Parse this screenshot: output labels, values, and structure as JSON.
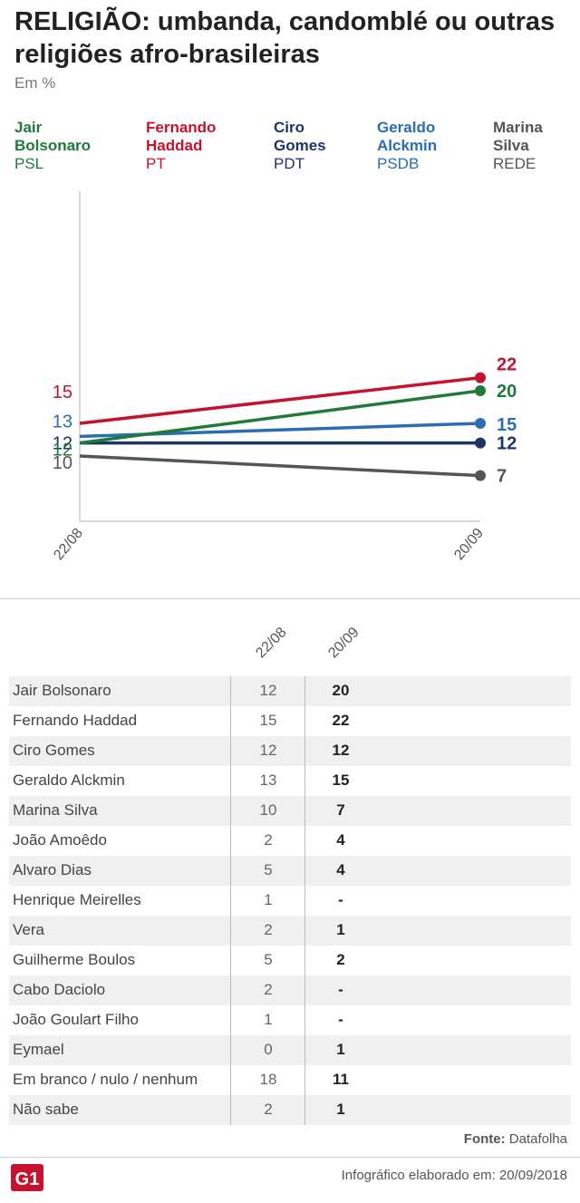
{
  "title": "RELIGIÃO: umbanda, candomblé ou outras religiões afro-brasileiras",
  "subtitle": "Em %",
  "legend": [
    {
      "name": "Jair Bolsonaro",
      "party": "PSL",
      "color": "#1f7a3a"
    },
    {
      "name": "Fernando Haddad",
      "party": "PT",
      "color": "#c4122f"
    },
    {
      "name": "Ciro Gomes",
      "party": "PDT",
      "color": "#1c3466"
    },
    {
      "name": "Geraldo Alckmin",
      "party": "PSDB",
      "color": "#2a6db5"
    },
    {
      "name": "Marina Silva",
      "party": "REDE",
      "color": "#555555"
    }
  ],
  "chart_data": {
    "type": "line",
    "x": [
      "22/08",
      "20/09"
    ],
    "series": [
      {
        "name": "Fernando Haddad",
        "values": [
          15,
          22
        ],
        "color": "#c4122f"
      },
      {
        "name": "Jair Bolsonaro",
        "values": [
          12,
          20
        ],
        "color": "#1f7a3a"
      },
      {
        "name": "Geraldo Alckmin",
        "values": [
          13,
          15
        ],
        "color": "#2a6db5"
      },
      {
        "name": "Ciro Gomes",
        "values": [
          12,
          12
        ],
        "color": "#1c3466"
      },
      {
        "name": "Marina Silva",
        "values": [
          10,
          7
        ],
        "color": "#555555"
      }
    ]
  },
  "table": {
    "headers": [
      "22/08",
      "20/09"
    ],
    "rows": [
      {
        "name": "Jair Bolsonaro",
        "v1": "12",
        "v2": "20"
      },
      {
        "name": "Fernando Haddad",
        "v1": "15",
        "v2": "22"
      },
      {
        "name": "Ciro Gomes",
        "v1": "12",
        "v2": "12"
      },
      {
        "name": "Geraldo Alckmin",
        "v1": "13",
        "v2": "15"
      },
      {
        "name": "Marina Silva",
        "v1": "10",
        "v2": "7"
      },
      {
        "name": "João Amoêdo",
        "v1": "2",
        "v2": "4"
      },
      {
        "name": "Alvaro Dias",
        "v1": "5",
        "v2": "4"
      },
      {
        "name": "Henrique Meirelles",
        "v1": "1",
        "v2": "-"
      },
      {
        "name": "Vera",
        "v1": "2",
        "v2": "1"
      },
      {
        "name": "Guilherme Boulos",
        "v1": "5",
        "v2": "2"
      },
      {
        "name": "Cabo Daciolo",
        "v1": "2",
        "v2": "-"
      },
      {
        "name": "João Goulart Filho",
        "v1": "1",
        "v2": "-"
      },
      {
        "name": "Eymael",
        "v1": "0",
        "v2": "1"
      },
      {
        "name": "Em branco / nulo / nenhum",
        "v1": "18",
        "v2": "11"
      },
      {
        "name": "Não sabe",
        "v1": "2",
        "v2": "1"
      }
    ]
  },
  "source_label": "Fonte:",
  "source_value": "Datafolha",
  "footer": "Infográfico elaborado em: 20/09/2018",
  "logo_text": "G1",
  "logo_color": "#c4122f"
}
